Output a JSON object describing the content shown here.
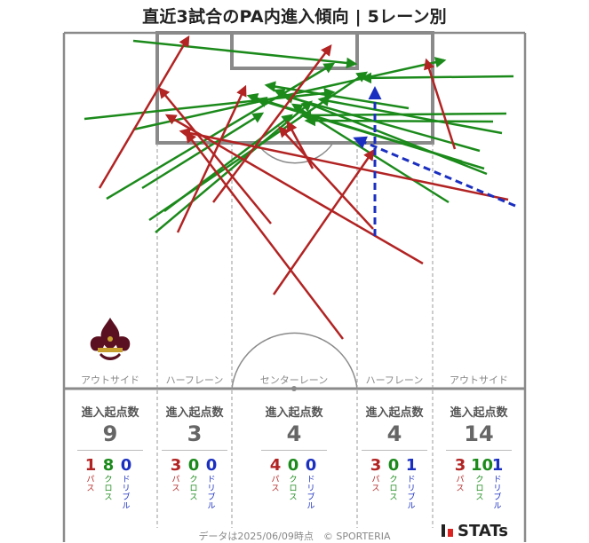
{
  "title": "直近3試合のPA内進入傾向 | 5レーン別",
  "lanes": [
    {
      "name": "アウトサイド",
      "stat_label": "進入起点数",
      "total": "9",
      "breakdown": [
        {
          "value": "1",
          "label": "パス"
        },
        {
          "value": "8",
          "label": "クロス"
        },
        {
          "value": "0",
          "label": "ドリブル"
        }
      ]
    },
    {
      "name": "ハーフレーン",
      "stat_label": "進入起点数",
      "total": "3",
      "breakdown": [
        {
          "value": "3",
          "label": "パス"
        },
        {
          "value": "0",
          "label": "クロス"
        },
        {
          "value": "0",
          "label": "ドリブル"
        }
      ]
    },
    {
      "name": "センターレーン",
      "stat_label": "進入起点数",
      "total": "4",
      "breakdown": [
        {
          "value": "4",
          "label": "パス"
        },
        {
          "value": "0",
          "label": "クロス"
        },
        {
          "value": "0",
          "label": "ドリブル"
        }
      ]
    },
    {
      "name": "ハーフレーン",
      "stat_label": "進入起点数",
      "total": "4",
      "breakdown": [
        {
          "value": "3",
          "label": "パス"
        },
        {
          "value": "0",
          "label": "クロス"
        },
        {
          "value": "1",
          "label": "ドリブル"
        }
      ]
    },
    {
      "name": "アウトサイド",
      "stat_label": "進入起点数",
      "total": "14",
      "breakdown": [
        {
          "value": "3",
          "label": "パス"
        },
        {
          "value": "10",
          "label": "クロス"
        },
        {
          "value": "1",
          "label": "ドリブル"
        }
      ]
    }
  ],
  "colors": {
    "pass": "#b22323",
    "cross": "#1b8a1b",
    "dribble": "#1a2fc0",
    "pitch_line": "#8a8a8a"
  },
  "footer": "データは2025/06/09時点　© SPORTERIA",
  "logo_text": "STATs",
  "crest_icon": "club-crest-icon"
}
